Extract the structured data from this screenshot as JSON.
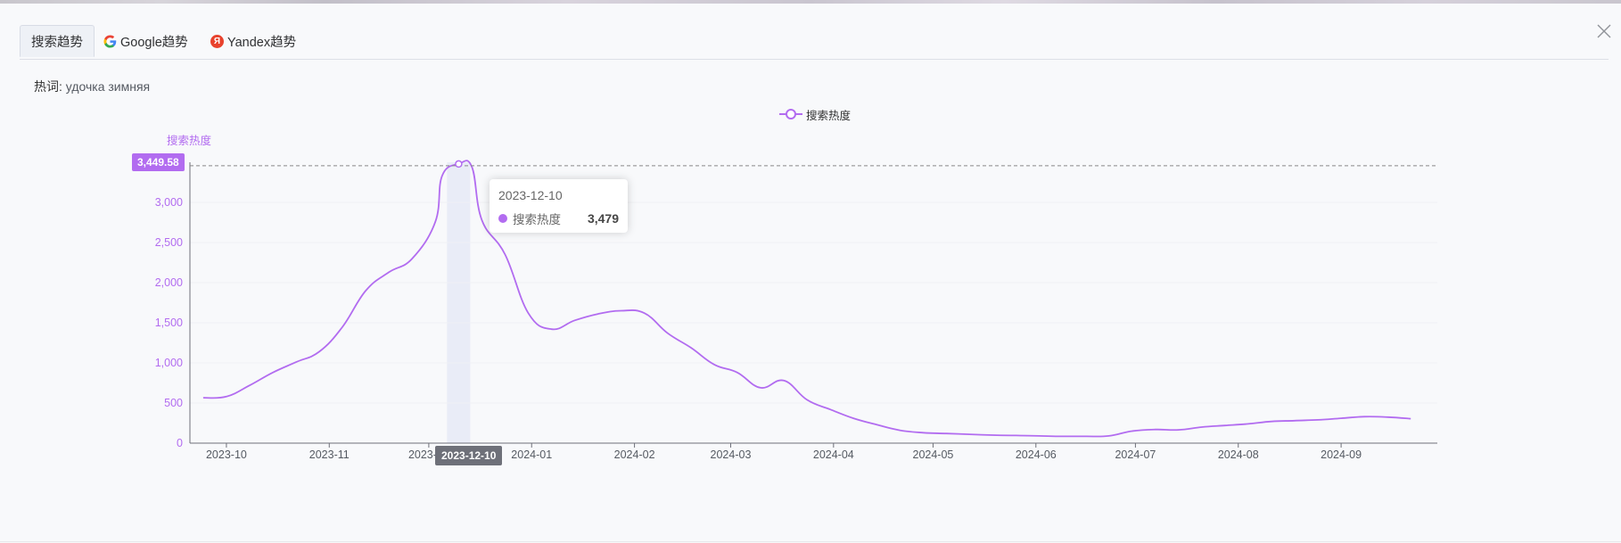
{
  "tabs": [
    {
      "label": "搜索趋势",
      "icon": "",
      "active": true
    },
    {
      "label": "Google趋势",
      "icon": "google-icon",
      "active": false
    },
    {
      "label": "Yandex趋势",
      "icon": "yandex-icon",
      "active": false
    }
  ],
  "keyword": {
    "label": "热词:",
    "value": "удочка зимняя"
  },
  "colors": {
    "series": "#b26cf0",
    "axis": "#6e7079",
    "highlight": "#e9ecf7"
  },
  "legend": {
    "series_name": "搜索热度"
  },
  "pointer": {
    "y_value": "3,449.58",
    "x_value": "2023-12-10"
  },
  "tooltip": {
    "date": "2023-12-10",
    "series_name": "搜索热度",
    "value": "3,479"
  },
  "chart_data": {
    "type": "line",
    "ylabel": "搜索热度",
    "ylim": [
      0,
      3500
    ],
    "yticks": [
      "0",
      "500",
      "1,000",
      "1,500",
      "2,000",
      "2,500",
      "3,000"
    ],
    "xlim": [
      "2023-09-20",
      "2024-09-30"
    ],
    "xticks": [
      "2023-10",
      "2023-11",
      "2023-12",
      "2024-01",
      "2024-02",
      "2024-03",
      "2024-04",
      "2024-05",
      "2024-06",
      "2024-07",
      "2024-08",
      "2024-09"
    ],
    "grid": true,
    "legend_position": "top-center",
    "series": [
      {
        "name": "搜索热度",
        "points": [
          [
            "2023-09-24",
            565
          ],
          [
            "2023-10-01",
            580
          ],
          [
            "2023-10-08",
            720
          ],
          [
            "2023-10-15",
            880
          ],
          [
            "2023-10-22",
            1010
          ],
          [
            "2023-10-29",
            1140
          ],
          [
            "2023-11-05",
            1450
          ],
          [
            "2023-11-12",
            1900
          ],
          [
            "2023-11-19",
            2130
          ],
          [
            "2023-11-26",
            2300
          ],
          [
            "2023-12-03",
            2760
          ],
          [
            "2023-12-05",
            3330
          ],
          [
            "2023-12-10",
            3479
          ],
          [
            "2023-12-14",
            3440
          ],
          [
            "2023-12-17",
            2780
          ],
          [
            "2023-12-24",
            2350
          ],
          [
            "2023-12-31",
            1620
          ],
          [
            "2024-01-07",
            1420
          ],
          [
            "2024-01-14",
            1530
          ],
          [
            "2024-01-21",
            1610
          ],
          [
            "2024-01-28",
            1650
          ],
          [
            "2024-02-04",
            1620
          ],
          [
            "2024-02-11",
            1370
          ],
          [
            "2024-02-18",
            1190
          ],
          [
            "2024-02-25",
            980
          ],
          [
            "2024-03-03",
            880
          ],
          [
            "2024-03-10",
            690
          ],
          [
            "2024-03-17",
            780
          ],
          [
            "2024-03-24",
            540
          ],
          [
            "2024-03-31",
            420
          ],
          [
            "2024-04-07",
            310
          ],
          [
            "2024-04-14",
            230
          ],
          [
            "2024-04-21",
            160
          ],
          [
            "2024-04-28",
            130
          ],
          [
            "2024-05-05",
            120
          ],
          [
            "2024-05-12",
            110
          ],
          [
            "2024-05-19",
            100
          ],
          [
            "2024-05-26",
            95
          ],
          [
            "2024-06-02",
            90
          ],
          [
            "2024-06-09",
            85
          ],
          [
            "2024-06-16",
            85
          ],
          [
            "2024-06-23",
            90
          ],
          [
            "2024-06-30",
            150
          ],
          [
            "2024-07-07",
            170
          ],
          [
            "2024-07-14",
            165
          ],
          [
            "2024-07-21",
            200
          ],
          [
            "2024-07-28",
            220
          ],
          [
            "2024-08-04",
            240
          ],
          [
            "2024-08-11",
            270
          ],
          [
            "2024-08-18",
            280
          ],
          [
            "2024-08-25",
            290
          ],
          [
            "2024-09-01",
            310
          ],
          [
            "2024-09-08",
            330
          ],
          [
            "2024-09-15",
            325
          ],
          [
            "2024-09-22",
            305
          ]
        ]
      }
    ],
    "highlight_point": {
      "x": "2023-12-10",
      "y": 3479
    }
  }
}
